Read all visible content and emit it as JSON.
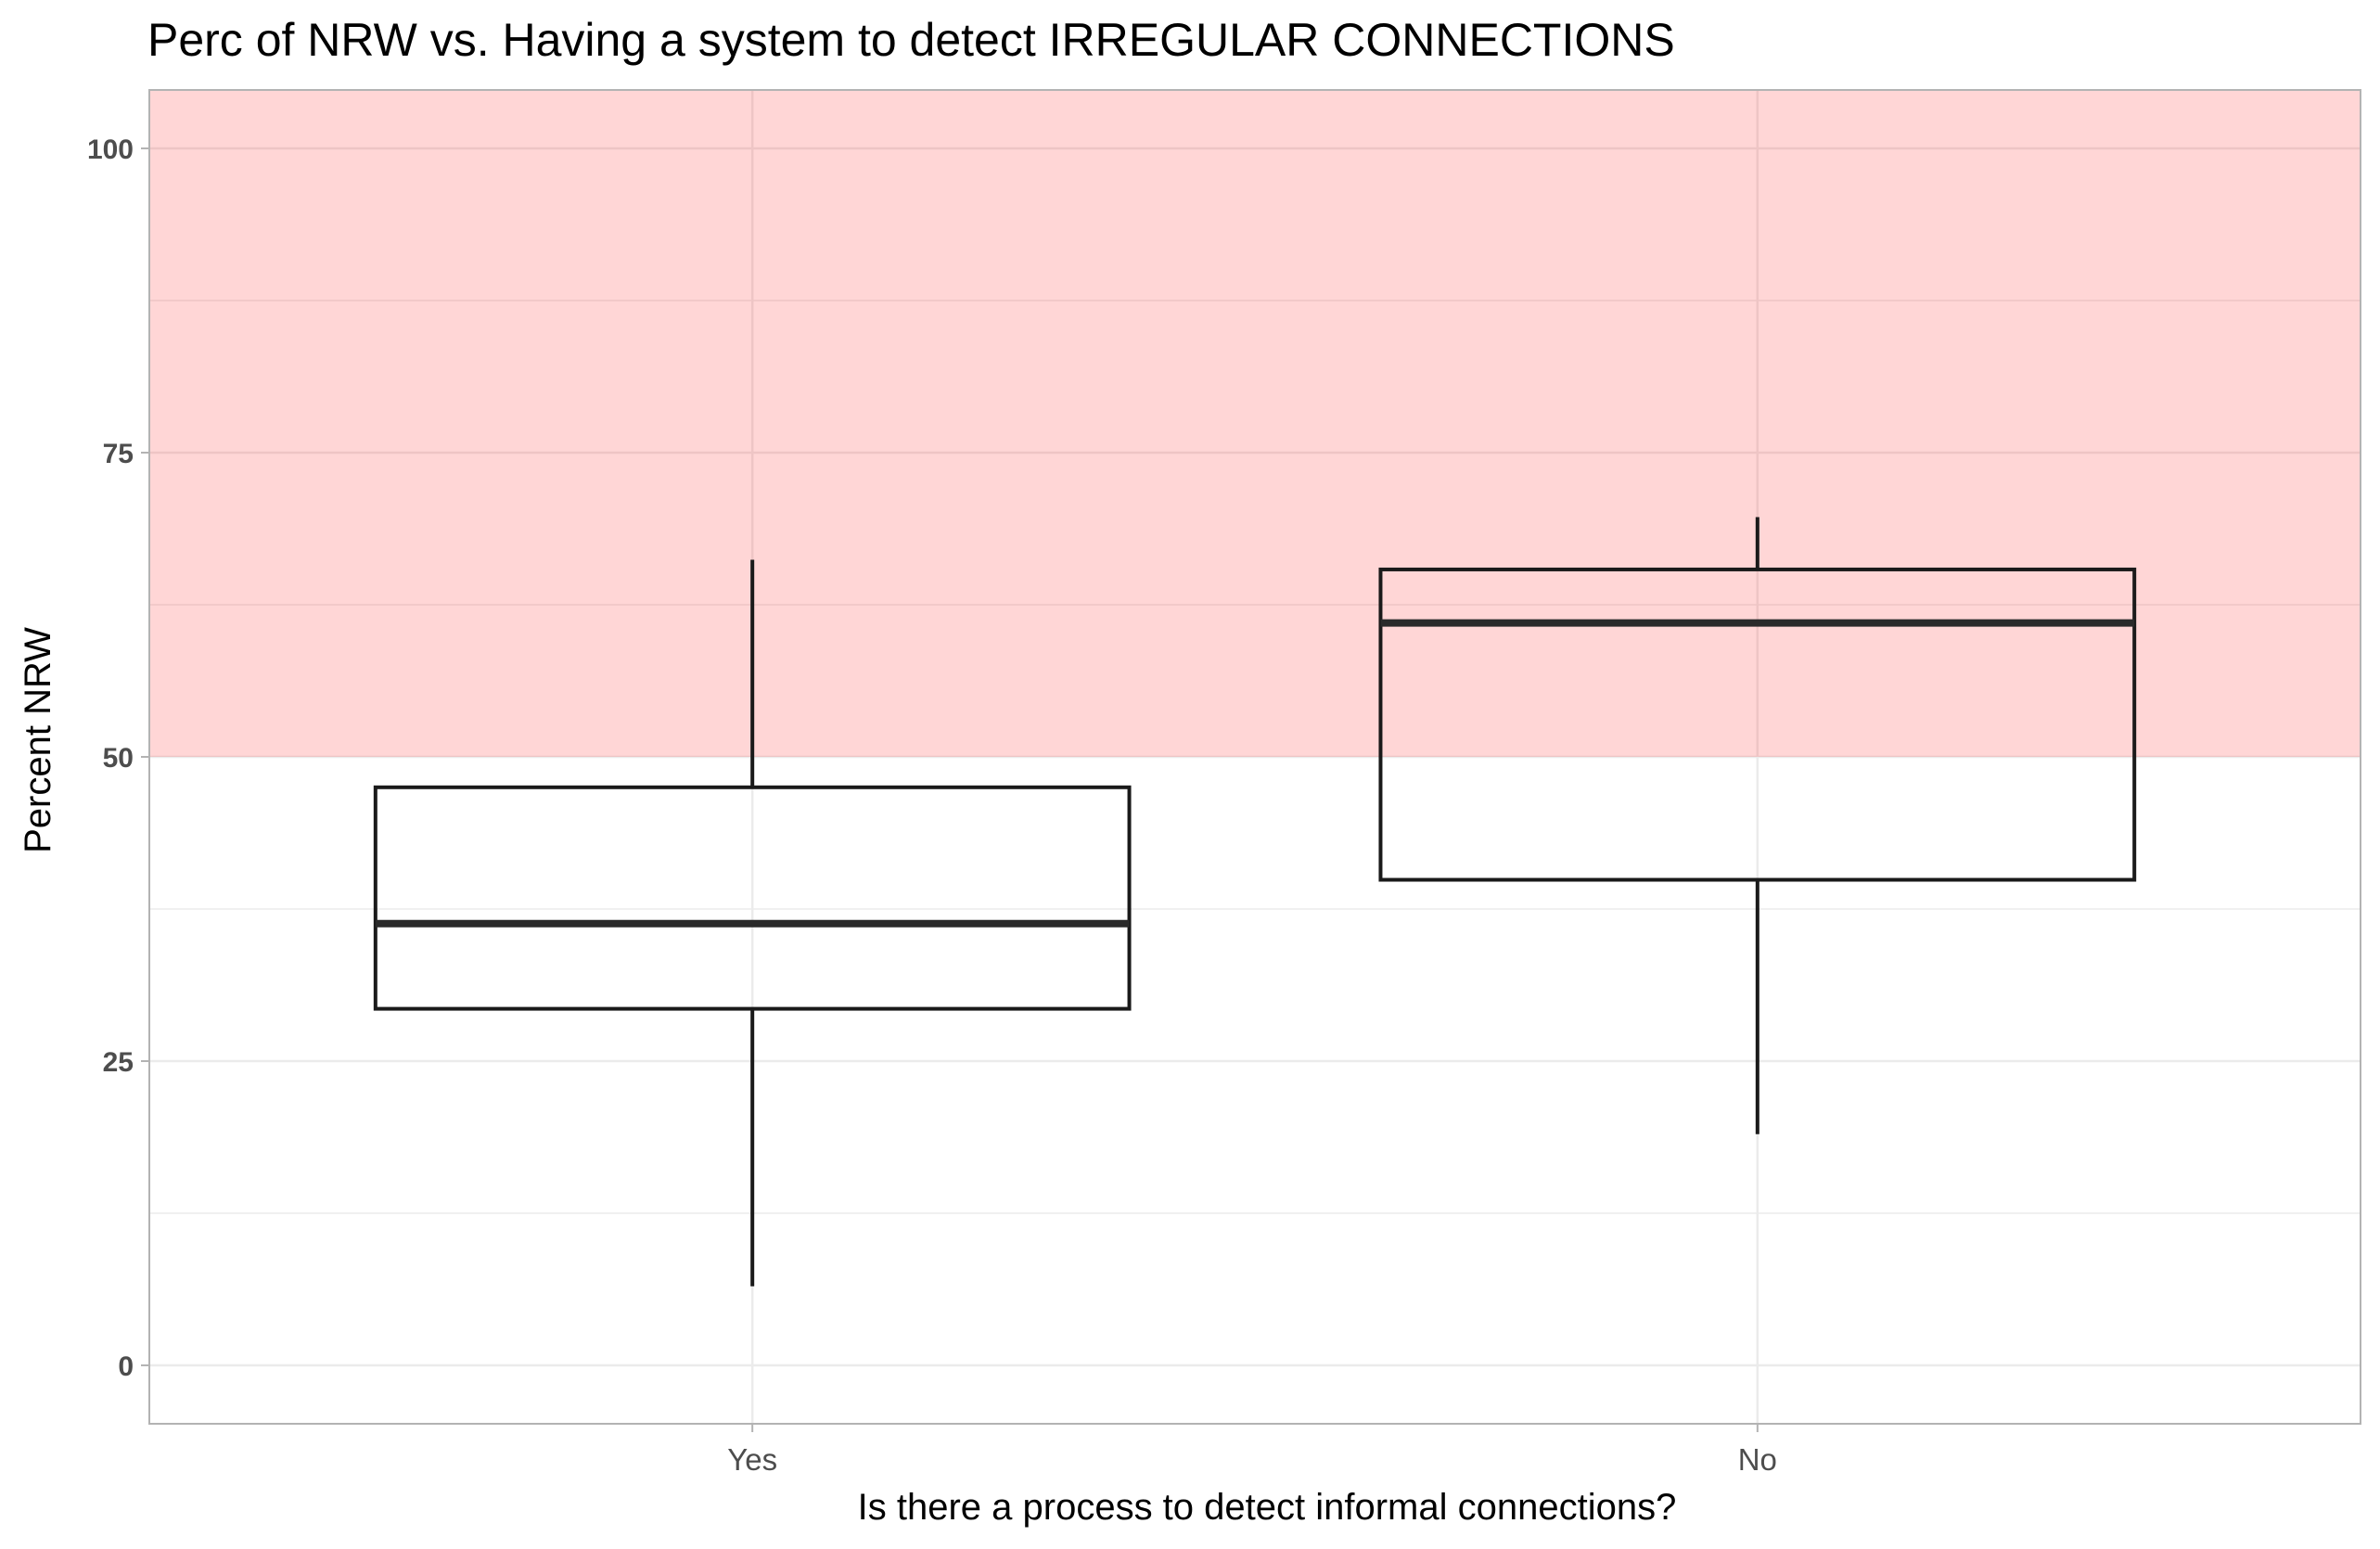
{
  "chart_data": {
    "type": "boxplot",
    "title": "Perc of NRW vs. Having a system to detect IRREGULAR CONNECTIONS",
    "xlabel": "Is there a process to detect informal connections?",
    "ylabel": "Percent NRW",
    "categories": [
      "Yes",
      "No"
    ],
    "boxes": [
      {
        "category": "Yes",
        "min": 6.5,
        "q1": 29.3,
        "median": 36.3,
        "q3": 47.5,
        "max": 66.2
      },
      {
        "category": "No",
        "min": 19.0,
        "q1": 39.9,
        "median": 61.0,
        "q3": 65.4,
        "max": 69.7
      }
    ],
    "ylim": [
      -4.8,
      104.8
    ],
    "yticks": [
      0,
      25,
      50,
      75,
      100
    ],
    "highlight_band": {
      "from": 50,
      "to": 104.8,
      "color": "#ff0000",
      "opacity": 0.16
    },
    "grid": true,
    "colors": {
      "panel_border": "#b3b3b3",
      "gridline": "#ebebeb",
      "box_stroke": "#1a1a1a",
      "median": "#2a2a2a"
    }
  }
}
